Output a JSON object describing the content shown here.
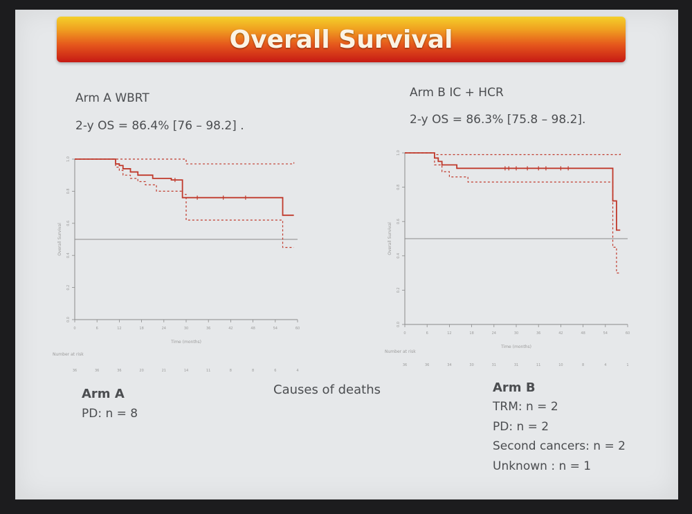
{
  "slide_title": "Overall Survival",
  "arm_a": {
    "heading": "Arm A WBRT",
    "os": "2-y OS = 86.4% [76 – 98.2] ."
  },
  "arm_b": {
    "heading": "Arm B IC + HCR",
    "os": "2-y OS = 86.3% [75.8 – 98.2]."
  },
  "deaths": {
    "title": "Causes of deaths",
    "arm_a_label": "Arm A",
    "arm_a_items": [
      "PD: n = 8"
    ],
    "arm_b_label": "Arm B",
    "arm_b_items": [
      "TRM: n = 2",
      "PD: n = 2",
      "Second cancers: n = 2",
      "Unknown : n = 1"
    ]
  },
  "colors": {
    "survival_line": "#c0392b",
    "ci_line": "#c0392b",
    "reference_line": "#8a8a8a",
    "axis": "#8a8a8a"
  },
  "chart_data": [
    {
      "type": "line",
      "title": "Arm A WBRT",
      "xlabel": "Time (months)",
      "ylabel": "Overall Survival",
      "xlim": [
        0,
        60
      ],
      "ylim": [
        0,
        1
      ],
      "xticks": [
        0,
        6,
        12,
        18,
        24,
        30,
        36,
        42,
        48,
        54,
        60
      ],
      "yticks": [
        0.0,
        0.2,
        0.4,
        0.6,
        0.8,
        1.0
      ],
      "reference_line": 0.5,
      "risk_label": "Number at risk",
      "at_risk": [
        "36",
        "36",
        "36",
        "20",
        "21",
        "14",
        "11",
        "8",
        "8",
        "6",
        "4"
      ],
      "series": [
        {
          "name": "estimate",
          "x": [
            0,
            10,
            11,
            12,
            13,
            15,
            17,
            21,
            26,
            29,
            56,
            59
          ],
          "y": [
            1.0,
            1.0,
            0.97,
            0.96,
            0.94,
            0.92,
            0.9,
            0.88,
            0.87,
            0.76,
            0.65,
            0.65
          ]
        },
        {
          "name": "upper_ci",
          "x": [
            0,
            29,
            30,
            59
          ],
          "y": [
            1.0,
            1.0,
            0.97,
            0.98
          ]
        },
        {
          "name": "lower_ci",
          "x": [
            0,
            10,
            11,
            12,
            13,
            15,
            17,
            19,
            22,
            29,
            30,
            56,
            59
          ],
          "y": [
            1.0,
            1.0,
            0.95,
            0.93,
            0.9,
            0.88,
            0.86,
            0.84,
            0.8,
            0.78,
            0.62,
            0.45,
            0.45
          ]
        }
      ],
      "censor_x": [
        27,
        33,
        40,
        46
      ]
    },
    {
      "type": "line",
      "title": "Arm B IC + HCR",
      "xlabel": "Time (months)",
      "ylabel": "Overall Survival",
      "xlim": [
        0,
        60
      ],
      "ylim": [
        0,
        1
      ],
      "xticks": [
        0,
        6,
        12,
        18,
        24,
        30,
        36,
        42,
        48,
        54,
        60
      ],
      "yticks": [
        0.0,
        0.2,
        0.4,
        0.6,
        0.8,
        1.0
      ],
      "reference_line": 0.5,
      "risk_label": "Number at risk",
      "at_risk": [
        "36",
        "36",
        "34",
        "30",
        "31",
        "31",
        "11",
        "10",
        "8",
        "4",
        "1"
      ],
      "series": [
        {
          "name": "estimate",
          "x": [
            0,
            7,
            8,
            9,
            10,
            14,
            56,
            57,
            58
          ],
          "y": [
            1.0,
            1.0,
            0.97,
            0.95,
            0.93,
            0.91,
            0.72,
            0.55,
            0.55
          ]
        },
        {
          "name": "upper_ci",
          "x": [
            0,
            7,
            8,
            58
          ],
          "y": [
            1.0,
            1.0,
            0.99,
            1.0
          ]
        },
        {
          "name": "lower_ci",
          "x": [
            0,
            7,
            8,
            10,
            12,
            17,
            55,
            56,
            57,
            58
          ],
          "y": [
            1.0,
            1.0,
            0.93,
            0.89,
            0.86,
            0.83,
            0.83,
            0.45,
            0.3,
            0.3
          ]
        }
      ],
      "censor_x": [
        27,
        28,
        30,
        33,
        36,
        38,
        42,
        44
      ]
    }
  ]
}
